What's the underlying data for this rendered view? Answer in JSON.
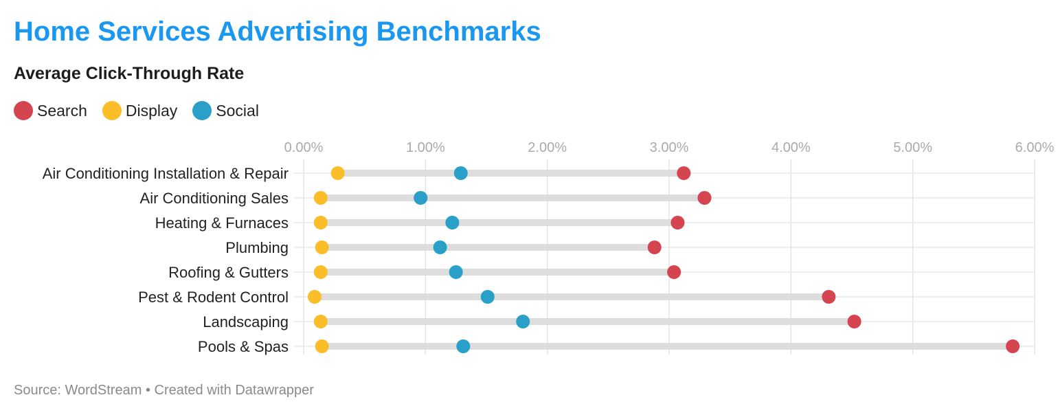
{
  "title": "Home Services Advertising Benchmarks",
  "subtitle": "Average Click-Through Rate",
  "legend": [
    {
      "label": "Search",
      "color": "#d5454f"
    },
    {
      "label": "Display",
      "color": "#fbbe29"
    },
    {
      "label": "Social",
      "color": "#2a9fc8"
    }
  ],
  "footer": {
    "source": "Source: WordStream",
    "separator": "•",
    "created": "Created with Datawrapper"
  },
  "chart_data": {
    "type": "scatter",
    "title": "Average Click-Through Rate",
    "xlim": [
      0,
      6
    ],
    "x_ticks": [
      "0.00%",
      "1.00%",
      "2.00%",
      "3.00%",
      "4.00%",
      "5.00%",
      "6.00%"
    ],
    "grid": true,
    "legend_position": "top-left",
    "categories": [
      "Air Conditioning Installation & Repair",
      "Air Conditioning Sales",
      "Heating & Furnaces",
      "Plumbing",
      "Roofing & Gutters",
      "Pest & Rodent Control",
      "Landscaping",
      "Pools & Spas"
    ],
    "series": [
      {
        "name": "Search",
        "color": "#d5454f",
        "values": [
          3.12,
          3.29,
          3.07,
          2.88,
          3.04,
          4.31,
          4.52,
          5.82
        ]
      },
      {
        "name": "Display",
        "color": "#fbbe29",
        "values": [
          0.28,
          0.14,
          0.14,
          0.15,
          0.14,
          0.09,
          0.14,
          0.15
        ]
      },
      {
        "name": "Social",
        "color": "#2a9fc8",
        "values": [
          1.29,
          0.96,
          1.22,
          1.12,
          1.25,
          1.51,
          1.8,
          1.31
        ]
      }
    ]
  }
}
